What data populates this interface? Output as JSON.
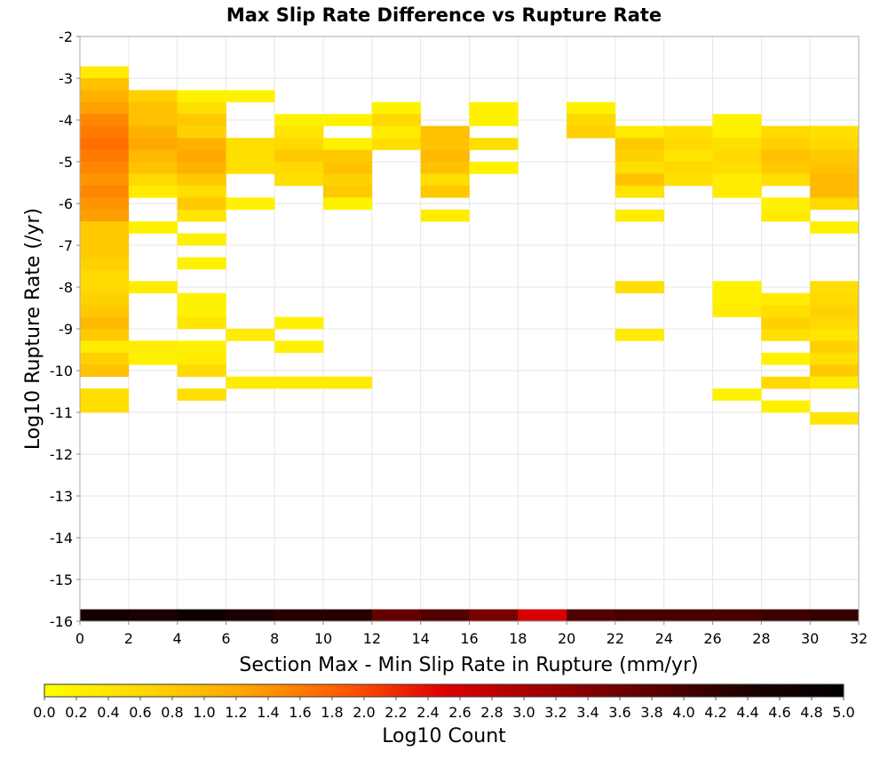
{
  "chart_data": {
    "type": "heatmap",
    "title": "Max Slip Rate Difference vs Rupture Rate",
    "xlabel": "Section Max - Min Slip Rate in Rupture (mm/yr)",
    "ylabel": "Log10 Rupture Rate (/yr)",
    "xlim": [
      0,
      32
    ],
    "ylim": [
      -16,
      -2
    ],
    "x_ticks": [
      "0",
      "2",
      "4",
      "6",
      "8",
      "10",
      "12",
      "14",
      "16",
      "18",
      "20",
      "22",
      "24",
      "26",
      "28",
      "30",
      "32"
    ],
    "y_ticks": [
      "-2",
      "-3",
      "-4",
      "-5",
      "-6",
      "-7",
      "-8",
      "-9",
      "-10",
      "-11",
      "-12",
      "-13",
      "-14",
      "-15",
      "-16"
    ],
    "grid": true,
    "x_bin_width": 2,
    "y_bin_height": 0.2857,
    "colorbar": {
      "label": "Log10 Count",
      "min": 0.0,
      "max": 5.0,
      "ticks": [
        "0.0",
        "0.2",
        "0.4",
        "0.6",
        "0.8",
        "1.0",
        "1.2",
        "1.4",
        "1.6",
        "1.8",
        "2.0",
        "2.2",
        "2.4",
        "2.6",
        "2.8",
        "3.0",
        "3.2",
        "3.4",
        "3.6",
        "3.8",
        "4.0",
        "4.2",
        "4.4",
        "4.6",
        "4.8",
        "5.0"
      ],
      "colors": [
        "#ffff00",
        "#ffd700",
        "#ffa500",
        "#ff5a00",
        "#e00000",
        "#a00000",
        "#600000",
        "#200000",
        "#000000"
      ]
    },
    "cells": [
      {
        "x": 0,
        "y": -3.0,
        "v": 0.3
      },
      {
        "x": 0,
        "y": -3.286,
        "v": 0.9
      },
      {
        "x": 0,
        "y": -3.571,
        "v": 1.1
      },
      {
        "x": 0,
        "y": -3.857,
        "v": 1.3
      },
      {
        "x": 0,
        "y": -4.143,
        "v": 1.5
      },
      {
        "x": 0,
        "y": -4.429,
        "v": 1.6
      },
      {
        "x": 0,
        "y": -4.714,
        "v": 1.7
      },
      {
        "x": 0,
        "y": -5.0,
        "v": 1.6
      },
      {
        "x": 0,
        "y": -5.286,
        "v": 1.5
      },
      {
        "x": 0,
        "y": -5.571,
        "v": 1.4
      },
      {
        "x": 0,
        "y": -5.857,
        "v": 1.5
      },
      {
        "x": 0,
        "y": -6.143,
        "v": 1.4
      },
      {
        "x": 0,
        "y": -6.429,
        "v": 1.3
      },
      {
        "x": 0,
        "y": -6.714,
        "v": 0.8
      },
      {
        "x": 0,
        "y": -7.0,
        "v": 0.8
      },
      {
        "x": 0,
        "y": -7.286,
        "v": 0.8
      },
      {
        "x": 0,
        "y": -7.571,
        "v": 0.7
      },
      {
        "x": 0,
        "y": -7.857,
        "v": 0.6
      },
      {
        "x": 0,
        "y": -8.143,
        "v": 0.6
      },
      {
        "x": 0,
        "y": -8.429,
        "v": 0.7
      },
      {
        "x": 0,
        "y": -8.714,
        "v": 0.8
      },
      {
        "x": 0,
        "y": -9.0,
        "v": 1.0
      },
      {
        "x": 0,
        "y": -9.286,
        "v": 0.8
      },
      {
        "x": 0,
        "y": -9.571,
        "v": 0.3
      },
      {
        "x": 0,
        "y": -9.857,
        "v": 0.7
      },
      {
        "x": 0,
        "y": -10.143,
        "v": 0.9
      },
      {
        "x": 0,
        "y": -10.714,
        "v": 0.5
      },
      {
        "x": 0,
        "y": -11.0,
        "v": 0.5
      },
      {
        "x": 2,
        "y": -3.571,
        "v": 0.7
      },
      {
        "x": 2,
        "y": -3.857,
        "v": 0.9
      },
      {
        "x": 2,
        "y": -4.143,
        "v": 0.9
      },
      {
        "x": 2,
        "y": -4.429,
        "v": 1.1
      },
      {
        "x": 2,
        "y": -4.714,
        "v": 1.2
      },
      {
        "x": 2,
        "y": -5.0,
        "v": 1.0
      },
      {
        "x": 2,
        "y": -5.286,
        "v": 0.9
      },
      {
        "x": 2,
        "y": -5.571,
        "v": 0.6
      },
      {
        "x": 2,
        "y": -5.857,
        "v": 0.3
      },
      {
        "x": 2,
        "y": -6.714,
        "v": 0.2
      },
      {
        "x": 2,
        "y": -8.143,
        "v": 0.3
      },
      {
        "x": 2,
        "y": -9.571,
        "v": 0.3
      },
      {
        "x": 2,
        "y": -9.857,
        "v": 0.2
      },
      {
        "x": 4,
        "y": -3.571,
        "v": 0.2
      },
      {
        "x": 4,
        "y": -3.857,
        "v": 0.5
      },
      {
        "x": 4,
        "y": -4.143,
        "v": 0.8
      },
      {
        "x": 4,
        "y": -4.429,
        "v": 0.7
      },
      {
        "x": 4,
        "y": -4.714,
        "v": 1.1
      },
      {
        "x": 4,
        "y": -5.0,
        "v": 1.2
      },
      {
        "x": 4,
        "y": -5.286,
        "v": 1.1
      },
      {
        "x": 4,
        "y": -5.571,
        "v": 0.8
      },
      {
        "x": 4,
        "y": -5.857,
        "v": 0.5
      },
      {
        "x": 4,
        "y": -6.143,
        "v": 0.8
      },
      {
        "x": 4,
        "y": -6.429,
        "v": 0.4
      },
      {
        "x": 4,
        "y": -7.0,
        "v": 0.2
      },
      {
        "x": 4,
        "y": -7.571,
        "v": 0.2
      },
      {
        "x": 4,
        "y": -8.429,
        "v": 0.2
      },
      {
        "x": 4,
        "y": -8.714,
        "v": 0.2
      },
      {
        "x": 4,
        "y": -9.0,
        "v": 0.4
      },
      {
        "x": 4,
        "y": -9.571,
        "v": 0.2
      },
      {
        "x": 4,
        "y": -9.857,
        "v": 0.3
      },
      {
        "x": 4,
        "y": -10.143,
        "v": 0.6
      },
      {
        "x": 4,
        "y": -10.714,
        "v": 0.5
      },
      {
        "x": 6,
        "y": -3.571,
        "v": 0.2
      },
      {
        "x": 6,
        "y": -4.714,
        "v": 0.5
      },
      {
        "x": 6,
        "y": -5.0,
        "v": 0.5
      },
      {
        "x": 6,
        "y": -5.286,
        "v": 0.5
      },
      {
        "x": 6,
        "y": -6.143,
        "v": 0.2
      },
      {
        "x": 6,
        "y": -9.286,
        "v": 0.3
      },
      {
        "x": 6,
        "y": -10.429,
        "v": 0.3
      },
      {
        "x": 8,
        "y": -4.143,
        "v": 0.2
      },
      {
        "x": 8,
        "y": -4.429,
        "v": 0.4
      },
      {
        "x": 8,
        "y": -4.714,
        "v": 0.6
      },
      {
        "x": 8,
        "y": -5.0,
        "v": 0.8
      },
      {
        "x": 8,
        "y": -5.286,
        "v": 0.6
      },
      {
        "x": 8,
        "y": -5.571,
        "v": 0.5
      },
      {
        "x": 8,
        "y": -9.0,
        "v": 0.2
      },
      {
        "x": 8,
        "y": -9.571,
        "v": 0.2
      },
      {
        "x": 8,
        "y": -10.429,
        "v": 0.3
      },
      {
        "x": 10,
        "y": -4.143,
        "v": 0.2
      },
      {
        "x": 10,
        "y": -4.714,
        "v": 0.2
      },
      {
        "x": 10,
        "y": -5.0,
        "v": 0.8
      },
      {
        "x": 10,
        "y": -5.286,
        "v": 0.9
      },
      {
        "x": 10,
        "y": -5.571,
        "v": 0.7
      },
      {
        "x": 10,
        "y": -5.857,
        "v": 0.8
      },
      {
        "x": 10,
        "y": -6.143,
        "v": 0.2
      },
      {
        "x": 10,
        "y": -10.429,
        "v": 0.3
      },
      {
        "x": 12,
        "y": -3.857,
        "v": 0.2
      },
      {
        "x": 12,
        "y": -4.143,
        "v": 0.6
      },
      {
        "x": 12,
        "y": -4.429,
        "v": 0.3
      },
      {
        "x": 12,
        "y": -4.714,
        "v": 0.5
      },
      {
        "x": 14,
        "y": -4.429,
        "v": 0.9
      },
      {
        "x": 14,
        "y": -4.714,
        "v": 0.9
      },
      {
        "x": 14,
        "y": -5.0,
        "v": 1.0
      },
      {
        "x": 14,
        "y": -5.286,
        "v": 0.9
      },
      {
        "x": 14,
        "y": -5.571,
        "v": 0.5
      },
      {
        "x": 14,
        "y": -5.857,
        "v": 0.8
      },
      {
        "x": 14,
        "y": -6.429,
        "v": 0.3
      },
      {
        "x": 16,
        "y": -3.857,
        "v": 0.2
      },
      {
        "x": 16,
        "y": -4.143,
        "v": 0.2
      },
      {
        "x": 16,
        "y": -4.714,
        "v": 0.5
      },
      {
        "x": 16,
        "y": -5.286,
        "v": 0.2
      },
      {
        "x": 20,
        "y": -3.857,
        "v": 0.2
      },
      {
        "x": 20,
        "y": -4.143,
        "v": 0.6
      },
      {
        "x": 20,
        "y": -4.429,
        "v": 0.7
      },
      {
        "x": 22,
        "y": -4.429,
        "v": 0.3
      },
      {
        "x": 22,
        "y": -4.714,
        "v": 0.8
      },
      {
        "x": 22,
        "y": -5.0,
        "v": 0.7
      },
      {
        "x": 22,
        "y": -5.286,
        "v": 0.5
      },
      {
        "x": 22,
        "y": -5.571,
        "v": 0.9
      },
      {
        "x": 22,
        "y": -5.857,
        "v": 0.4
      },
      {
        "x": 22,
        "y": -6.429,
        "v": 0.3
      },
      {
        "x": 22,
        "y": -8.143,
        "v": 0.5
      },
      {
        "x": 22,
        "y": -9.286,
        "v": 0.3
      },
      {
        "x": 24,
        "y": -4.429,
        "v": 0.5
      },
      {
        "x": 24,
        "y": -4.714,
        "v": 0.6
      },
      {
        "x": 24,
        "y": -5.0,
        "v": 0.4
      },
      {
        "x": 24,
        "y": -5.286,
        "v": 0.6
      },
      {
        "x": 24,
        "y": -5.571,
        "v": 0.5
      },
      {
        "x": 26,
        "y": -4.143,
        "v": 0.2
      },
      {
        "x": 26,
        "y": -4.429,
        "v": 0.2
      },
      {
        "x": 26,
        "y": -4.714,
        "v": 0.5
      },
      {
        "x": 26,
        "y": -5.0,
        "v": 0.6
      },
      {
        "x": 26,
        "y": -5.286,
        "v": 0.5
      },
      {
        "x": 26,
        "y": -5.571,
        "v": 0.3
      },
      {
        "x": 26,
        "y": -5.857,
        "v": 0.3
      },
      {
        "x": 26,
        "y": -8.143,
        "v": 0.2
      },
      {
        "x": 26,
        "y": -8.429,
        "v": 0.2
      },
      {
        "x": 26,
        "y": -8.714,
        "v": 0.3
      },
      {
        "x": 26,
        "y": -10.714,
        "v": 0.2
      },
      {
        "x": 28,
        "y": -4.429,
        "v": 0.6
      },
      {
        "x": 28,
        "y": -4.714,
        "v": 0.7
      },
      {
        "x": 28,
        "y": -5.0,
        "v": 0.9
      },
      {
        "x": 28,
        "y": -5.286,
        "v": 0.8
      },
      {
        "x": 28,
        "y": -5.571,
        "v": 0.5
      },
      {
        "x": 28,
        "y": -6.143,
        "v": 0.2
      },
      {
        "x": 28,
        "y": -6.429,
        "v": 0.3
      },
      {
        "x": 28,
        "y": -8.429,
        "v": 0.3
      },
      {
        "x": 28,
        "y": -8.714,
        "v": 0.5
      },
      {
        "x": 28,
        "y": -9.0,
        "v": 0.7
      },
      {
        "x": 28,
        "y": -9.286,
        "v": 0.5
      },
      {
        "x": 28,
        "y": -9.857,
        "v": 0.2
      },
      {
        "x": 28,
        "y": -10.429,
        "v": 0.6
      },
      {
        "x": 28,
        "y": -11.0,
        "v": 0.2
      },
      {
        "x": 30,
        "y": -4.429,
        "v": 0.5
      },
      {
        "x": 30,
        "y": -4.714,
        "v": 0.6
      },
      {
        "x": 30,
        "y": -5.0,
        "v": 0.8
      },
      {
        "x": 30,
        "y": -5.286,
        "v": 0.9
      },
      {
        "x": 30,
        "y": -5.571,
        "v": 1.0
      },
      {
        "x": 30,
        "y": -5.857,
        "v": 1.0
      },
      {
        "x": 30,
        "y": -6.143,
        "v": 0.6
      },
      {
        "x": 30,
        "y": -6.714,
        "v": 0.2
      },
      {
        "x": 30,
        "y": -8.143,
        "v": 0.5
      },
      {
        "x": 30,
        "y": -8.429,
        "v": 0.6
      },
      {
        "x": 30,
        "y": -8.714,
        "v": 0.7
      },
      {
        "x": 30,
        "y": -9.0,
        "v": 0.6
      },
      {
        "x": 30,
        "y": -9.286,
        "v": 0.4
      },
      {
        "x": 30,
        "y": -9.571,
        "v": 0.7
      },
      {
        "x": 30,
        "y": -9.857,
        "v": 0.5
      },
      {
        "x": 30,
        "y": -10.143,
        "v": 0.8
      },
      {
        "x": 30,
        "y": -10.429,
        "v": 0.3
      },
      {
        "x": 30,
        "y": -11.286,
        "v": 0.4
      },
      {
        "x": 0,
        "y": -16.0,
        "v": 4.6
      },
      {
        "x": 2,
        "y": -16.0,
        "v": 4.5
      },
      {
        "x": 4,
        "y": -16.0,
        "v": 4.7
      },
      {
        "x": 6,
        "y": -16.0,
        "v": 4.5
      },
      {
        "x": 8,
        "y": -16.0,
        "v": 4.3
      },
      {
        "x": 10,
        "y": -16.0,
        "v": 4.3
      },
      {
        "x": 12,
        "y": -16.0,
        "v": 3.7
      },
      {
        "x": 14,
        "y": -16.0,
        "v": 3.9
      },
      {
        "x": 16,
        "y": -16.0,
        "v": 3.5
      },
      {
        "x": 18,
        "y": -16.0,
        "v": 2.6
      },
      {
        "x": 20,
        "y": -16.0,
        "v": 3.9
      },
      {
        "x": 22,
        "y": -16.0,
        "v": 4.0
      },
      {
        "x": 24,
        "y": -16.0,
        "v": 4.0
      },
      {
        "x": 26,
        "y": -16.0,
        "v": 4.0
      },
      {
        "x": 28,
        "y": -16.0,
        "v": 4.1
      },
      {
        "x": 30,
        "y": -16.0,
        "v": 4.2
      }
    ]
  }
}
